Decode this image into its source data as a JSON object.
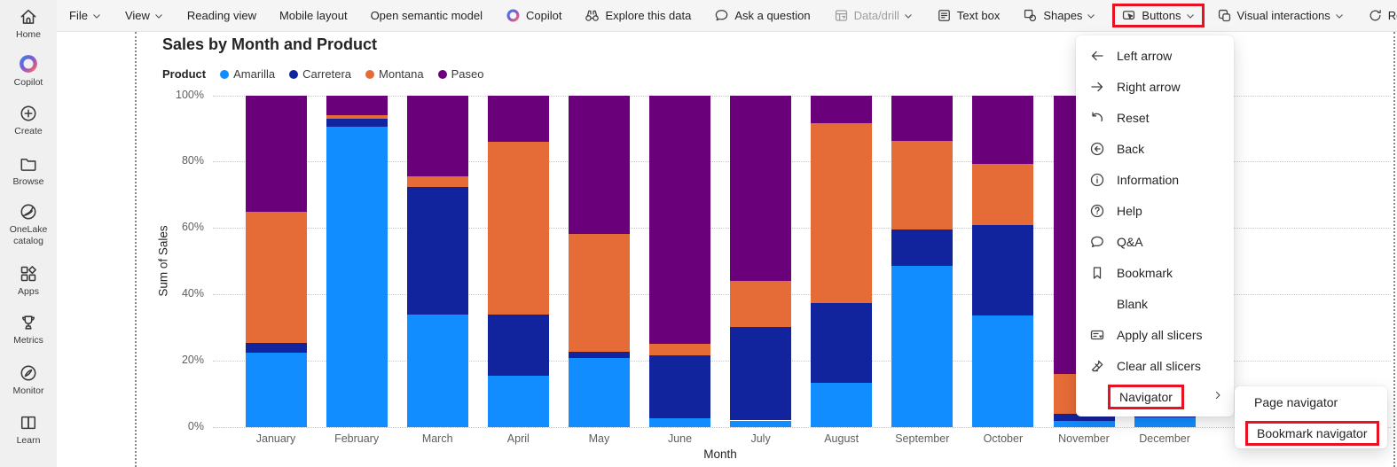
{
  "sidebar": {
    "items": [
      {
        "label": "Home",
        "icon": "home-icon"
      },
      {
        "label": "Copilot",
        "icon": "copilot-icon"
      },
      {
        "label": "Create",
        "icon": "create-icon"
      },
      {
        "label": "Browse",
        "icon": "browse-icon"
      },
      {
        "label": "OneLake catalog",
        "icon": "onelake-catalog-icon"
      },
      {
        "label": "Apps",
        "icon": "apps-icon"
      },
      {
        "label": "Metrics",
        "icon": "metrics-icon"
      },
      {
        "label": "Monitor",
        "icon": "monitor-icon"
      },
      {
        "label": "Learn",
        "icon": "learn-icon"
      }
    ]
  },
  "toolbar": {
    "items": [
      {
        "label": "File",
        "chevron": true
      },
      {
        "label": "View",
        "chevron": true
      },
      {
        "label": "Reading view"
      },
      {
        "label": "Mobile layout"
      },
      {
        "label": "Open semantic model"
      },
      {
        "label": "Copilot",
        "icon": "copilot-icon"
      },
      {
        "label": "Explore this data",
        "icon": "binoculars-icon"
      },
      {
        "label": "Ask a question",
        "icon": "chat-icon"
      },
      {
        "label": "Data/drill",
        "icon": "data-drill-icon",
        "chevron": true,
        "disabled": true
      },
      {
        "label": "Text box",
        "icon": "text-box-icon"
      },
      {
        "label": "Shapes",
        "icon": "shapes-icon",
        "chevron": true
      },
      {
        "label": "Buttons",
        "icon": "buttons-icon",
        "chevron": true,
        "highlighted": true
      },
      {
        "label": "Visual interactions",
        "icon": "visual-interactions-icon",
        "chevron": true
      },
      {
        "label": "Refresh",
        "icon": "refresh-icon"
      },
      {
        "label": "",
        "icon": "save-icon"
      }
    ]
  },
  "menus": {
    "buttons_menu": {
      "items": [
        {
          "label": "Left arrow",
          "icon": "left-arrow-icon"
        },
        {
          "label": "Right arrow",
          "icon": "right-arrow-icon"
        },
        {
          "label": "Reset",
          "icon": "reset-icon"
        },
        {
          "label": "Back",
          "icon": "back-icon"
        },
        {
          "label": "Information",
          "icon": "information-icon"
        },
        {
          "label": "Help",
          "icon": "help-icon"
        },
        {
          "label": "Q&A",
          "icon": "qa-icon"
        },
        {
          "label": "Bookmark",
          "icon": "bookmark-icon"
        },
        {
          "label": "Blank",
          "icon": null
        },
        {
          "label": "Apply all slicers",
          "icon": "apply-all-slicers-icon"
        },
        {
          "label": "Clear all slicers",
          "icon": "clear-all-slicers-icon"
        },
        {
          "label": "Navigator",
          "icon": null,
          "submenu": true,
          "highlighted": true
        }
      ]
    },
    "navigator_submenu": {
      "items": [
        {
          "label": "Page navigator"
        },
        {
          "label": "Bookmark navigator",
          "highlighted": true
        }
      ]
    }
  },
  "chart_data": {
    "type": "bar",
    "stacked": true,
    "percent_stacked": true,
    "title": "Sales by Month and Product",
    "legend_title": "Product",
    "legend_position": "top",
    "xlabel": "Month",
    "ylabel": "Sum of Sales",
    "ylim": [
      0,
      100
    ],
    "ytick_labels": [
      "0%",
      "20%",
      "40%",
      "60%",
      "80%",
      "100%"
    ],
    "grid": true,
    "categories": [
      "January",
      "February",
      "March",
      "April",
      "May",
      "June",
      "July",
      "August",
      "September",
      "October",
      "November",
      "December"
    ],
    "series": [
      {
        "name": "Amarilla",
        "color": "#118DFF",
        "values": [
          22.4,
          90.5,
          34.0,
          15.6,
          20.9,
          2.6,
          2.0,
          13.4,
          48.6,
          33.7,
          2.0,
          3.0
        ]
      },
      {
        "name": "Carretera",
        "color": "#12239E",
        "values": [
          3.0,
          2.4,
          38.3,
          18.4,
          1.8,
          19.0,
          28.2,
          24.1,
          11.0,
          27.3,
          2.0,
          20.0
        ]
      },
      {
        "name": "Montana",
        "color": "#E66C37",
        "values": [
          39.4,
          1.2,
          3.2,
          52.1,
          35.6,
          3.4,
          14.0,
          54.1,
          26.6,
          18.3,
          12.0,
          25.0
        ]
      },
      {
        "name": "Paseo",
        "color": "#6B007B",
        "values": [
          35.2,
          5.9,
          24.5,
          13.9,
          41.7,
          75.0,
          55.8,
          8.4,
          13.8,
          20.7,
          84.0,
          52.0
        ]
      }
    ]
  },
  "colors": {
    "highlight_red": "#E81123",
    "toolbar_bg": "#F5F5F5",
    "rail_bg": "#F0F0F0",
    "disabled_text": "#A19F9D"
  }
}
